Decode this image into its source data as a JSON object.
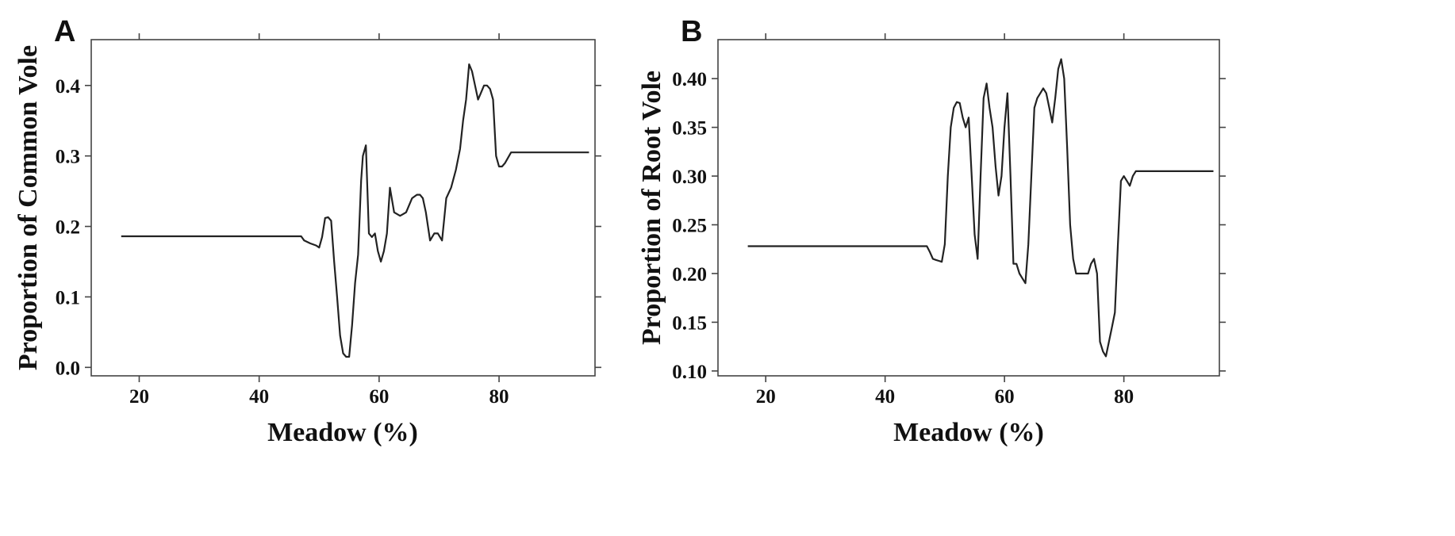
{
  "chart_data": [
    {
      "panel": "A",
      "type": "line",
      "title": "",
      "xlabel": "Meadow (%)",
      "ylabel": "Proportion of Common Vole",
      "xlim": [
        12,
        96
      ],
      "ylim": [
        -0.012,
        0.465
      ],
      "xticks": [
        20,
        40,
        60,
        80
      ],
      "yticks": [
        0.0,
        0.1,
        0.2,
        0.3,
        0.4
      ],
      "ytick_labels": [
        "0.0",
        "0.1",
        "0.2",
        "0.3",
        "0.4"
      ],
      "grid": false,
      "legend": "none",
      "color": "#222222",
      "series": [
        {
          "x": [
            17,
            47,
            47.5,
            48.5,
            49.5,
            50,
            50.5,
            51,
            51.5,
            52,
            52.5,
            53,
            53.5,
            54,
            54.5,
            55,
            55.5,
            56,
            56.5,
            57,
            57.3,
            57.8,
            58.3,
            58.8,
            59.3,
            59.8,
            60.3,
            60.8,
            61.3,
            61.8,
            62.5,
            63.5,
            64.5,
            65.5,
            66.3,
            66.8,
            67.3,
            67.8,
            68.5,
            69.2,
            69.8,
            70.5,
            71.2,
            72,
            72.8,
            73.5,
            74,
            74.5,
            75,
            75.5,
            76,
            76.5,
            77,
            77.5,
            78,
            78.5,
            79,
            79.5,
            80,
            80.5,
            81,
            82,
            95
          ],
          "y": [
            0.186,
            0.186,
            0.18,
            0.176,
            0.173,
            0.17,
            0.185,
            0.212,
            0.213,
            0.208,
            0.15,
            0.1,
            0.045,
            0.02,
            0.015,
            0.015,
            0.06,
            0.12,
            0.16,
            0.265,
            0.3,
            0.315,
            0.19,
            0.185,
            0.19,
            0.165,
            0.15,
            0.165,
            0.19,
            0.255,
            0.22,
            0.215,
            0.22,
            0.24,
            0.245,
            0.245,
            0.24,
            0.22,
            0.18,
            0.19,
            0.19,
            0.18,
            0.24,
            0.255,
            0.28,
            0.31,
            0.35,
            0.38,
            0.43,
            0.42,
            0.4,
            0.38,
            0.39,
            0.4,
            0.4,
            0.395,
            0.38,
            0.3,
            0.285,
            0.285,
            0.29,
            0.305,
            0.305
          ]
        }
      ]
    },
    {
      "panel": "B",
      "type": "line",
      "title": "",
      "xlabel": "Meadow (%)",
      "ylabel": "Proportion of Root Vole",
      "xlim": [
        12,
        96
      ],
      "ylim": [
        0.095,
        0.44
      ],
      "xticks": [
        20,
        40,
        60,
        80
      ],
      "yticks": [
        0.1,
        0.15,
        0.2,
        0.25,
        0.3,
        0.35,
        0.4
      ],
      "ytick_labels": [
        "0.10",
        "0.15",
        "0.20",
        "0.25",
        "0.30",
        "0.35",
        "0.40"
      ],
      "grid": false,
      "legend": "none",
      "color": "#222222",
      "series": [
        {
          "x": [
            17,
            47,
            47.5,
            48,
            48.5,
            49,
            49.5,
            50,
            50.5,
            51,
            51.5,
            52,
            52.5,
            53,
            53.5,
            54,
            54.5,
            55,
            55.5,
            56,
            56.5,
            57,
            57.5,
            58,
            58.5,
            59,
            59.5,
            60,
            60.5,
            61,
            61.5,
            62,
            62.5,
            63,
            63.5,
            64,
            64.5,
            65,
            65.5,
            66,
            66.5,
            67,
            67.5,
            68,
            68.5,
            69,
            69.5,
            70,
            70.5,
            71,
            71.5,
            72,
            72.5,
            73,
            73.5,
            74,
            74.5,
            75,
            75.5,
            76,
            76.5,
            77,
            77.5,
            78,
            78.5,
            79,
            79.5,
            80,
            80.5,
            81,
            81.5,
            82,
            95
          ],
          "y": [
            0.228,
            0.228,
            0.222,
            0.215,
            0.214,
            0.213,
            0.212,
            0.23,
            0.3,
            0.35,
            0.37,
            0.376,
            0.375,
            0.36,
            0.35,
            0.36,
            0.3,
            0.24,
            0.215,
            0.3,
            0.38,
            0.395,
            0.37,
            0.35,
            0.31,
            0.28,
            0.3,
            0.35,
            0.385,
            0.3,
            0.21,
            0.21,
            0.2,
            0.195,
            0.19,
            0.23,
            0.3,
            0.37,
            0.38,
            0.385,
            0.39,
            0.385,
            0.37,
            0.355,
            0.38,
            0.41,
            0.42,
            0.4,
            0.33,
            0.25,
            0.215,
            0.2,
            0.2,
            0.2,
            0.2,
            0.2,
            0.21,
            0.215,
            0.2,
            0.13,
            0.12,
            0.115,
            0.13,
            0.145,
            0.16,
            0.23,
            0.295,
            0.3,
            0.295,
            0.29,
            0.3,
            0.305,
            0.305
          ]
        }
      ]
    }
  ]
}
